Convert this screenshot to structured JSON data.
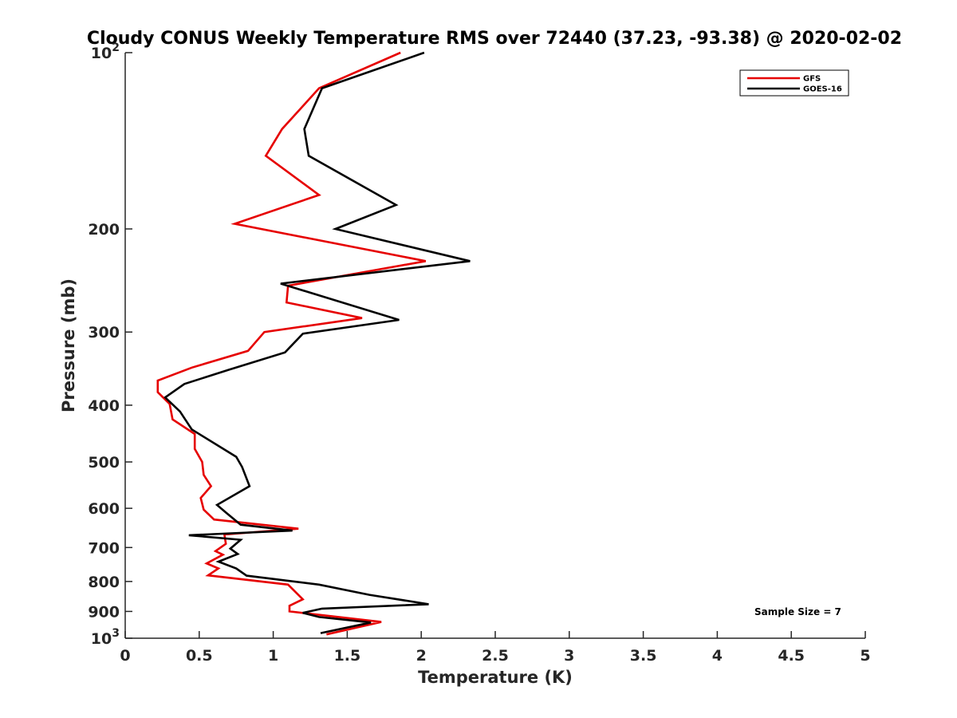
{
  "chart_data": {
    "type": "line",
    "title": "Cloudy CONUS Weekly Temperature RMS over 72440 (37.23, -93.38) @ 2020-02-02",
    "xlabel": "Temperature (K)",
    "ylabel": "Pressure (mb)",
    "xlim": [
      0,
      5
    ],
    "ylim": [
      100,
      1000
    ],
    "yscale": "log",
    "y_reversed": true,
    "grid": false,
    "legend_position": "top-right",
    "x_ticks": [
      0,
      0.5,
      1,
      1.5,
      2,
      2.5,
      3,
      3.5,
      4,
      4.5,
      5
    ],
    "x_tick_labels": [
      "0",
      "0.5",
      "1",
      "1.5",
      "2",
      "2.5",
      "3",
      "3.5",
      "4",
      "4.5",
      "5"
    ],
    "y_ticks": [
      100,
      200,
      300,
      400,
      500,
      600,
      700,
      800,
      900,
      1000
    ],
    "y_tick_labels": [
      {
        "base": "10",
        "exp": "2"
      },
      {
        "base": "200"
      },
      {
        "base": "300"
      },
      {
        "base": "400"
      },
      {
        "base": "500"
      },
      {
        "base": "600"
      },
      {
        "base": "700"
      },
      {
        "base": "800"
      },
      {
        "base": "900"
      },
      {
        "base": "10",
        "exp": "3"
      }
    ],
    "annotation": "Sample Size = 7",
    "series": [
      {
        "name": "GFS",
        "color": "#e60000",
        "points": [
          [
            1.86,
            100
          ],
          [
            1.31,
            115
          ],
          [
            1.06,
            135
          ],
          [
            0.95,
            150
          ],
          [
            1.31,
            175
          ],
          [
            0.74,
            196
          ],
          [
            2.03,
            227
          ],
          [
            1.1,
            250
          ],
          [
            1.09,
            267
          ],
          [
            1.6,
            284
          ],
          [
            0.94,
            300
          ],
          [
            0.83,
            323
          ],
          [
            0.45,
            345
          ],
          [
            0.22,
            363
          ],
          [
            0.22,
            380
          ],
          [
            0.3,
            398
          ],
          [
            0.32,
            423
          ],
          [
            0.47,
            448
          ],
          [
            0.47,
            475
          ],
          [
            0.52,
            500
          ],
          [
            0.53,
            526
          ],
          [
            0.58,
            550
          ],
          [
            0.51,
            576
          ],
          [
            0.53,
            603
          ],
          [
            0.6,
            627
          ],
          [
            1.17,
            650
          ],
          [
            0.67,
            665
          ],
          [
            0.68,
            690
          ],
          [
            0.61,
            710
          ],
          [
            0.66,
            720
          ],
          [
            0.55,
            745
          ],
          [
            0.63,
            760
          ],
          [
            0.56,
            781
          ],
          [
            1.1,
            810
          ],
          [
            1.2,
            858
          ],
          [
            1.11,
            880
          ],
          [
            1.11,
            900
          ],
          [
            1.73,
            938
          ],
          [
            1.36,
            985
          ]
        ]
      },
      {
        "name": "GOES-16",
        "color": "#000000",
        "points": [
          [
            2.02,
            100
          ],
          [
            1.33,
            115
          ],
          [
            1.21,
            135
          ],
          [
            1.24,
            150
          ],
          [
            1.83,
            182
          ],
          [
            1.42,
            200
          ],
          [
            2.33,
            227
          ],
          [
            1.05,
            248
          ],
          [
            1.85,
            286
          ],
          [
            1.2,
            302
          ],
          [
            1.08,
            325
          ],
          [
            0.7,
            348
          ],
          [
            0.4,
            368
          ],
          [
            0.27,
            388
          ],
          [
            0.37,
            410
          ],
          [
            0.45,
            440
          ],
          [
            0.75,
            490
          ],
          [
            0.79,
            510
          ],
          [
            0.84,
            550
          ],
          [
            0.62,
            592
          ],
          [
            0.68,
            610
          ],
          [
            0.78,
            640
          ],
          [
            1.13,
            655
          ],
          [
            0.43,
            667
          ],
          [
            0.78,
            679
          ],
          [
            0.71,
            703
          ],
          [
            0.76,
            718
          ],
          [
            0.63,
            740
          ],
          [
            0.75,
            760
          ],
          [
            0.82,
            782
          ],
          [
            1.31,
            810
          ],
          [
            1.65,
            843
          ],
          [
            2.05,
            875
          ],
          [
            1.33,
            890
          ],
          [
            1.2,
            905
          ],
          [
            1.31,
            920
          ],
          [
            1.66,
            940
          ],
          [
            1.32,
            980
          ]
        ]
      }
    ]
  }
}
